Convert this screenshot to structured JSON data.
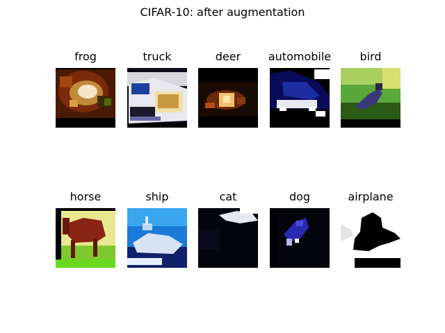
{
  "title": "CIFAR-10: after augmentation",
  "images": [
    {
      "label": "frog",
      "scene": "frog"
    },
    {
      "label": "truck",
      "scene": "truck"
    },
    {
      "label": "deer",
      "scene": "deer"
    },
    {
      "label": "automobile",
      "scene": "automobile"
    },
    {
      "label": "bird",
      "scene": "bird"
    },
    {
      "label": "horse",
      "scene": "horse"
    },
    {
      "label": "ship",
      "scene": "ship"
    },
    {
      "label": "cat",
      "scene": "cat"
    },
    {
      "label": "dog",
      "scene": "dog"
    },
    {
      "label": "airplane",
      "scene": "airplane"
    }
  ]
}
